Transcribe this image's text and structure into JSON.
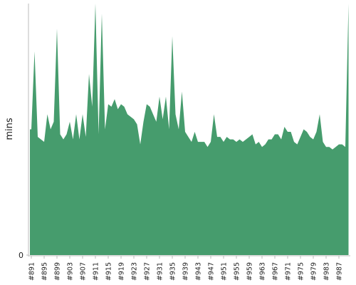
{
  "chart_data": {
    "type": "area",
    "y_label": "mins",
    "color": "#469c6d",
    "categories": [
      "#891",
      null,
      null,
      null,
      "#895",
      null,
      null,
      null,
      "#899",
      null,
      null,
      null,
      "#903",
      null,
      null,
      null,
      "#907",
      null,
      null,
      null,
      "#911",
      null,
      null,
      null,
      "#915",
      null,
      null,
      null,
      "#919",
      null,
      null,
      null,
      "#923",
      null,
      null,
      null,
      "#927",
      null,
      null,
      null,
      "#931",
      null,
      null,
      null,
      "#935",
      null,
      null,
      null,
      "#939",
      null,
      null,
      null,
      "#943",
      null,
      null,
      null,
      "#947",
      null,
      null,
      null,
      "#951",
      null,
      null,
      null,
      "#955",
      null,
      null,
      null,
      "#959",
      null,
      null,
      null,
      "#963",
      null,
      null,
      null,
      "#967",
      null,
      null,
      null,
      "#971",
      null,
      null,
      null,
      "#975",
      null,
      null,
      null,
      "#979",
      null,
      null,
      null,
      "#983",
      null,
      null,
      null,
      "#987",
      null,
      null,
      null
    ],
    "values": [
      50,
      81,
      47,
      46,
      45,
      56,
      50,
      53,
      90,
      48,
      46,
      48,
      53,
      46,
      56,
      46,
      56,
      47,
      72,
      59,
      100,
      48,
      96,
      50,
      60,
      59,
      62,
      58,
      60,
      59,
      56,
      55,
      54,
      52,
      44,
      53,
      60,
      59,
      56,
      53,
      63,
      54,
      63,
      50,
      87,
      56,
      50,
      65,
      49,
      47,
      45,
      49,
      45,
      45,
      45,
      43,
      45,
      56,
      47,
      47,
      45,
      47,
      46,
      46,
      45,
      46,
      45,
      46,
      47,
      48,
      44,
      45,
      43,
      44,
      46,
      46,
      48,
      48,
      46,
      51,
      49,
      49,
      45,
      44,
      47,
      50,
      49,
      47,
      46,
      49,
      56,
      45,
      43,
      43,
      42,
      43,
      44,
      44,
      43,
      100
    ],
    "ylim": [
      0,
      100
    ],
    "yticks": [
      0
    ]
  }
}
